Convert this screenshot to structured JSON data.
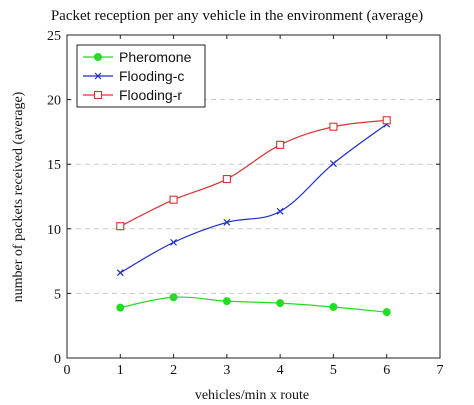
{
  "chart_data": {
    "type": "line",
    "title": "Packet reception per any vehicle in the environment (average)",
    "xlabel": "vehicles/min x route",
    "ylabel": "number of packets received (average)",
    "xlim": [
      0,
      7
    ],
    "ylim": [
      0,
      25
    ],
    "x_ticks": [
      "0",
      "1",
      "2",
      "3",
      "4",
      "5",
      "6",
      "7"
    ],
    "y_ticks": [
      "0",
      "5",
      "10",
      "15",
      "20",
      "25"
    ],
    "grid": "horizontal-dashed",
    "legend_position": "top-left",
    "x": [
      1,
      2,
      3,
      4,
      5,
      6
    ],
    "series": [
      {
        "name": "Pheromone",
        "color": "#22dd22",
        "marker": "circle",
        "values": [
          3.9,
          4.7,
          4.4,
          4.25,
          3.95,
          3.55
        ]
      },
      {
        "name": "Flooding-c",
        "color": "#1a2bd0",
        "marker": "x",
        "values": [
          6.6,
          8.95,
          10.5,
          11.35,
          15.05,
          18.1
        ]
      },
      {
        "name": "Flooding-r",
        "color": "#e03030",
        "marker": "square",
        "values": [
          10.2,
          12.25,
          13.85,
          16.5,
          17.9,
          18.4
        ]
      }
    ]
  }
}
